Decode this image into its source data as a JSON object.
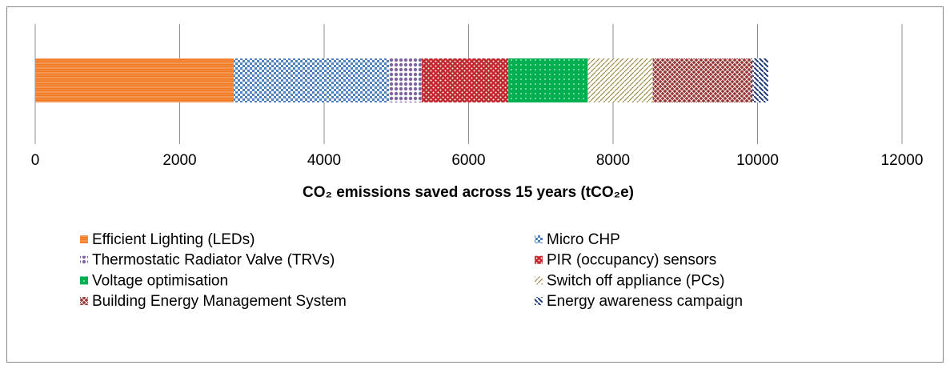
{
  "chart_data": {
    "type": "stacked-bar",
    "orientation": "horizontal",
    "x_label": "CO₂ emissions saved across 15 years (tCO₂e)",
    "xlim": [
      0,
      12000
    ],
    "xticks": [
      0,
      2000,
      4000,
      6000,
      8000,
      10000,
      12000
    ],
    "grid": true,
    "series": [
      {
        "name": "Efficient Lighting (LEDs)",
        "color": "#f07820",
        "values": [
          2750
        ]
      },
      {
        "name": "Micro CHP",
        "color": "#4f81bd",
        "values": [
          2150
        ]
      },
      {
        "name": "Thermostatic Radiator Valve (TRVs)",
        "color": "#8064a2",
        "values": [
          450
        ]
      },
      {
        "name": "PIR (occupancy) sensors",
        "color": "#c0282d",
        "values": [
          1200
        ]
      },
      {
        "name": "Voltage optimisation",
        "color": "#00b050",
        "values": [
          1100
        ]
      },
      {
        "name": "Switch off appliance (PCs)",
        "color": "#a08c50",
        "values": [
          900
        ]
      },
      {
        "name": "Building  Energy Management System",
        "color": "#953735",
        "values": [
          1380
        ]
      },
      {
        "name": "Energy awareness campaign",
        "color": "#1f3a78",
        "values": [
          220
        ]
      }
    ]
  }
}
